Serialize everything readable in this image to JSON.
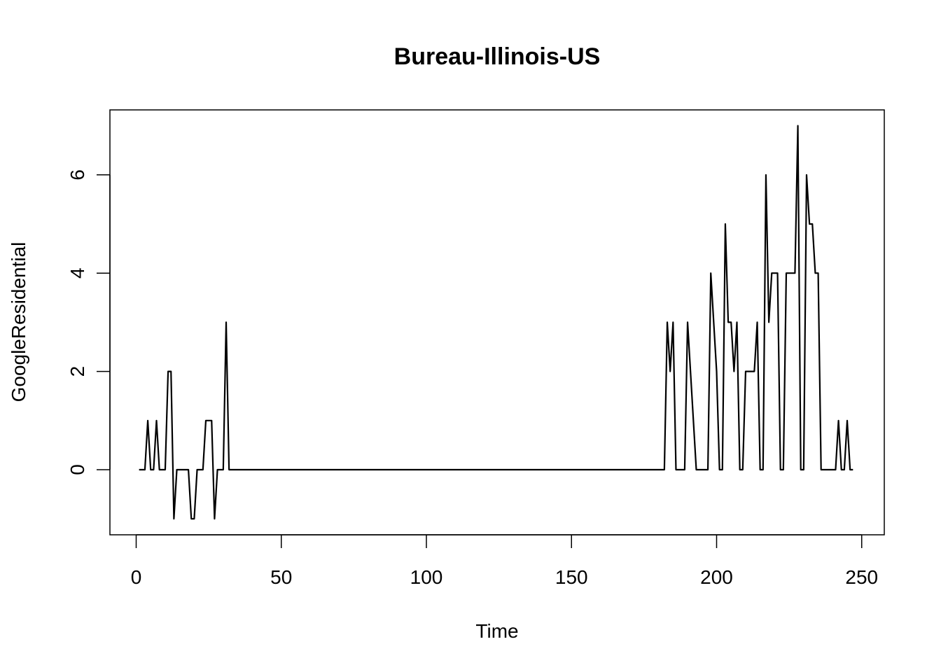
{
  "chart_data": {
    "type": "line",
    "title": "Bureau-Illinois-US",
    "xlabel": "Time",
    "ylabel": "GoogleResidential",
    "xlim": [
      1,
      248
    ],
    "ylim": [
      -1,
      7
    ],
    "x_ticks": [
      0,
      50,
      100,
      150,
      200,
      250
    ],
    "y_ticks": [
      0,
      2,
      4,
      6
    ],
    "grid": false,
    "line_color": "#000000",
    "series": [
      {
        "values": [
          0,
          0,
          0,
          1,
          0,
          0,
          1,
          0,
          0,
          0,
          2,
          2,
          -1,
          0,
          0,
          0,
          0,
          0,
          -1,
          -1,
          0,
          0,
          0,
          1,
          1,
          1,
          -1,
          0,
          0,
          0,
          3,
          0,
          0,
          0,
          0,
          0,
          0,
          0,
          0,
          0,
          0,
          0,
          0,
          0,
          0,
          0,
          0,
          0,
          0,
          0,
          0,
          0,
          0,
          0,
          0,
          0,
          0,
          0,
          0,
          0,
          0,
          0,
          0,
          0,
          0,
          0,
          0,
          0,
          0,
          0,
          0,
          0,
          0,
          0,
          0,
          0,
          0,
          0,
          0,
          0,
          0,
          0,
          0,
          0,
          0,
          0,
          0,
          0,
          0,
          0,
          0,
          0,
          0,
          0,
          0,
          0,
          0,
          0,
          0,
          0,
          0,
          0,
          0,
          0,
          0,
          0,
          0,
          0,
          0,
          0,
          0,
          0,
          0,
          0,
          0,
          0,
          0,
          0,
          0,
          0,
          0,
          0,
          0,
          0,
          0,
          0,
          0,
          0,
          0,
          0,
          0,
          0,
          0,
          0,
          0,
          0,
          0,
          0,
          0,
          0,
          0,
          0,
          0,
          0,
          0,
          0,
          0,
          0,
          0,
          0,
          0,
          0,
          0,
          0,
          0,
          0,
          0,
          0,
          0,
          0,
          0,
          0,
          0,
          0,
          0,
          0,
          0,
          0,
          0,
          0,
          0,
          0,
          0,
          0,
          0,
          0,
          0,
          0,
          0,
          0,
          0,
          0,
          3,
          2,
          3,
          0,
          0,
          0,
          0,
          3,
          2,
          1,
          0,
          0,
          0,
          0,
          0,
          4,
          3,
          2,
          0,
          0,
          5,
          3,
          3,
          2,
          3,
          0,
          0,
          2,
          2,
          2,
          2,
          3,
          0,
          0,
          6,
          3,
          4,
          4,
          4,
          0,
          0,
          4,
          4,
          4,
          4,
          7,
          0,
          0,
          6,
          5,
          5,
          4,
          4,
          0,
          0,
          0,
          0,
          0,
          0,
          1,
          0,
          0,
          1,
          0,
          0
        ]
      }
    ]
  }
}
